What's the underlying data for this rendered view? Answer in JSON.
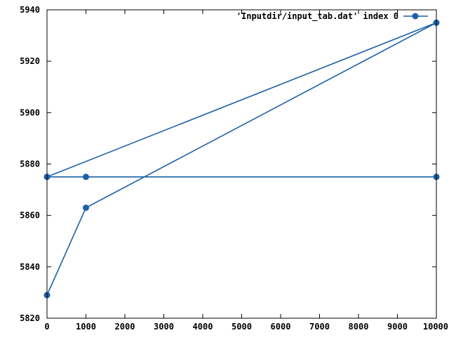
{
  "chart_data": {
    "type": "line",
    "title": "",
    "xlabel": "",
    "ylabel": "",
    "xlim": [
      0,
      10000
    ],
    "ylim": [
      5820,
      5940
    ],
    "x_ticks": [
      "0",
      "1000",
      "2000",
      "3000",
      "4000",
      "5000",
      "6000",
      "7000",
      "8000",
      "9000",
      "10000"
    ],
    "y_ticks": [
      "5820",
      "5840",
      "5860",
      "5880",
      "5900",
      "5920",
      "5940"
    ],
    "grid": false,
    "legend_position": "top-right",
    "series": [
      {
        "name": "'Inputdir/input_tab.dat' index 0",
        "color": "#1d5fa6",
        "marker": "circle",
        "points": [
          {
            "x": 0,
            "y": 5829
          },
          {
            "x": 1000,
            "y": 5863
          },
          {
            "x": 10000,
            "y": 5935
          },
          {
            "x": 0,
            "y": 5875
          },
          {
            "x": 1000,
            "y": 5875
          },
          {
            "x": 10000,
            "y": 5875
          }
        ]
      }
    ]
  }
}
